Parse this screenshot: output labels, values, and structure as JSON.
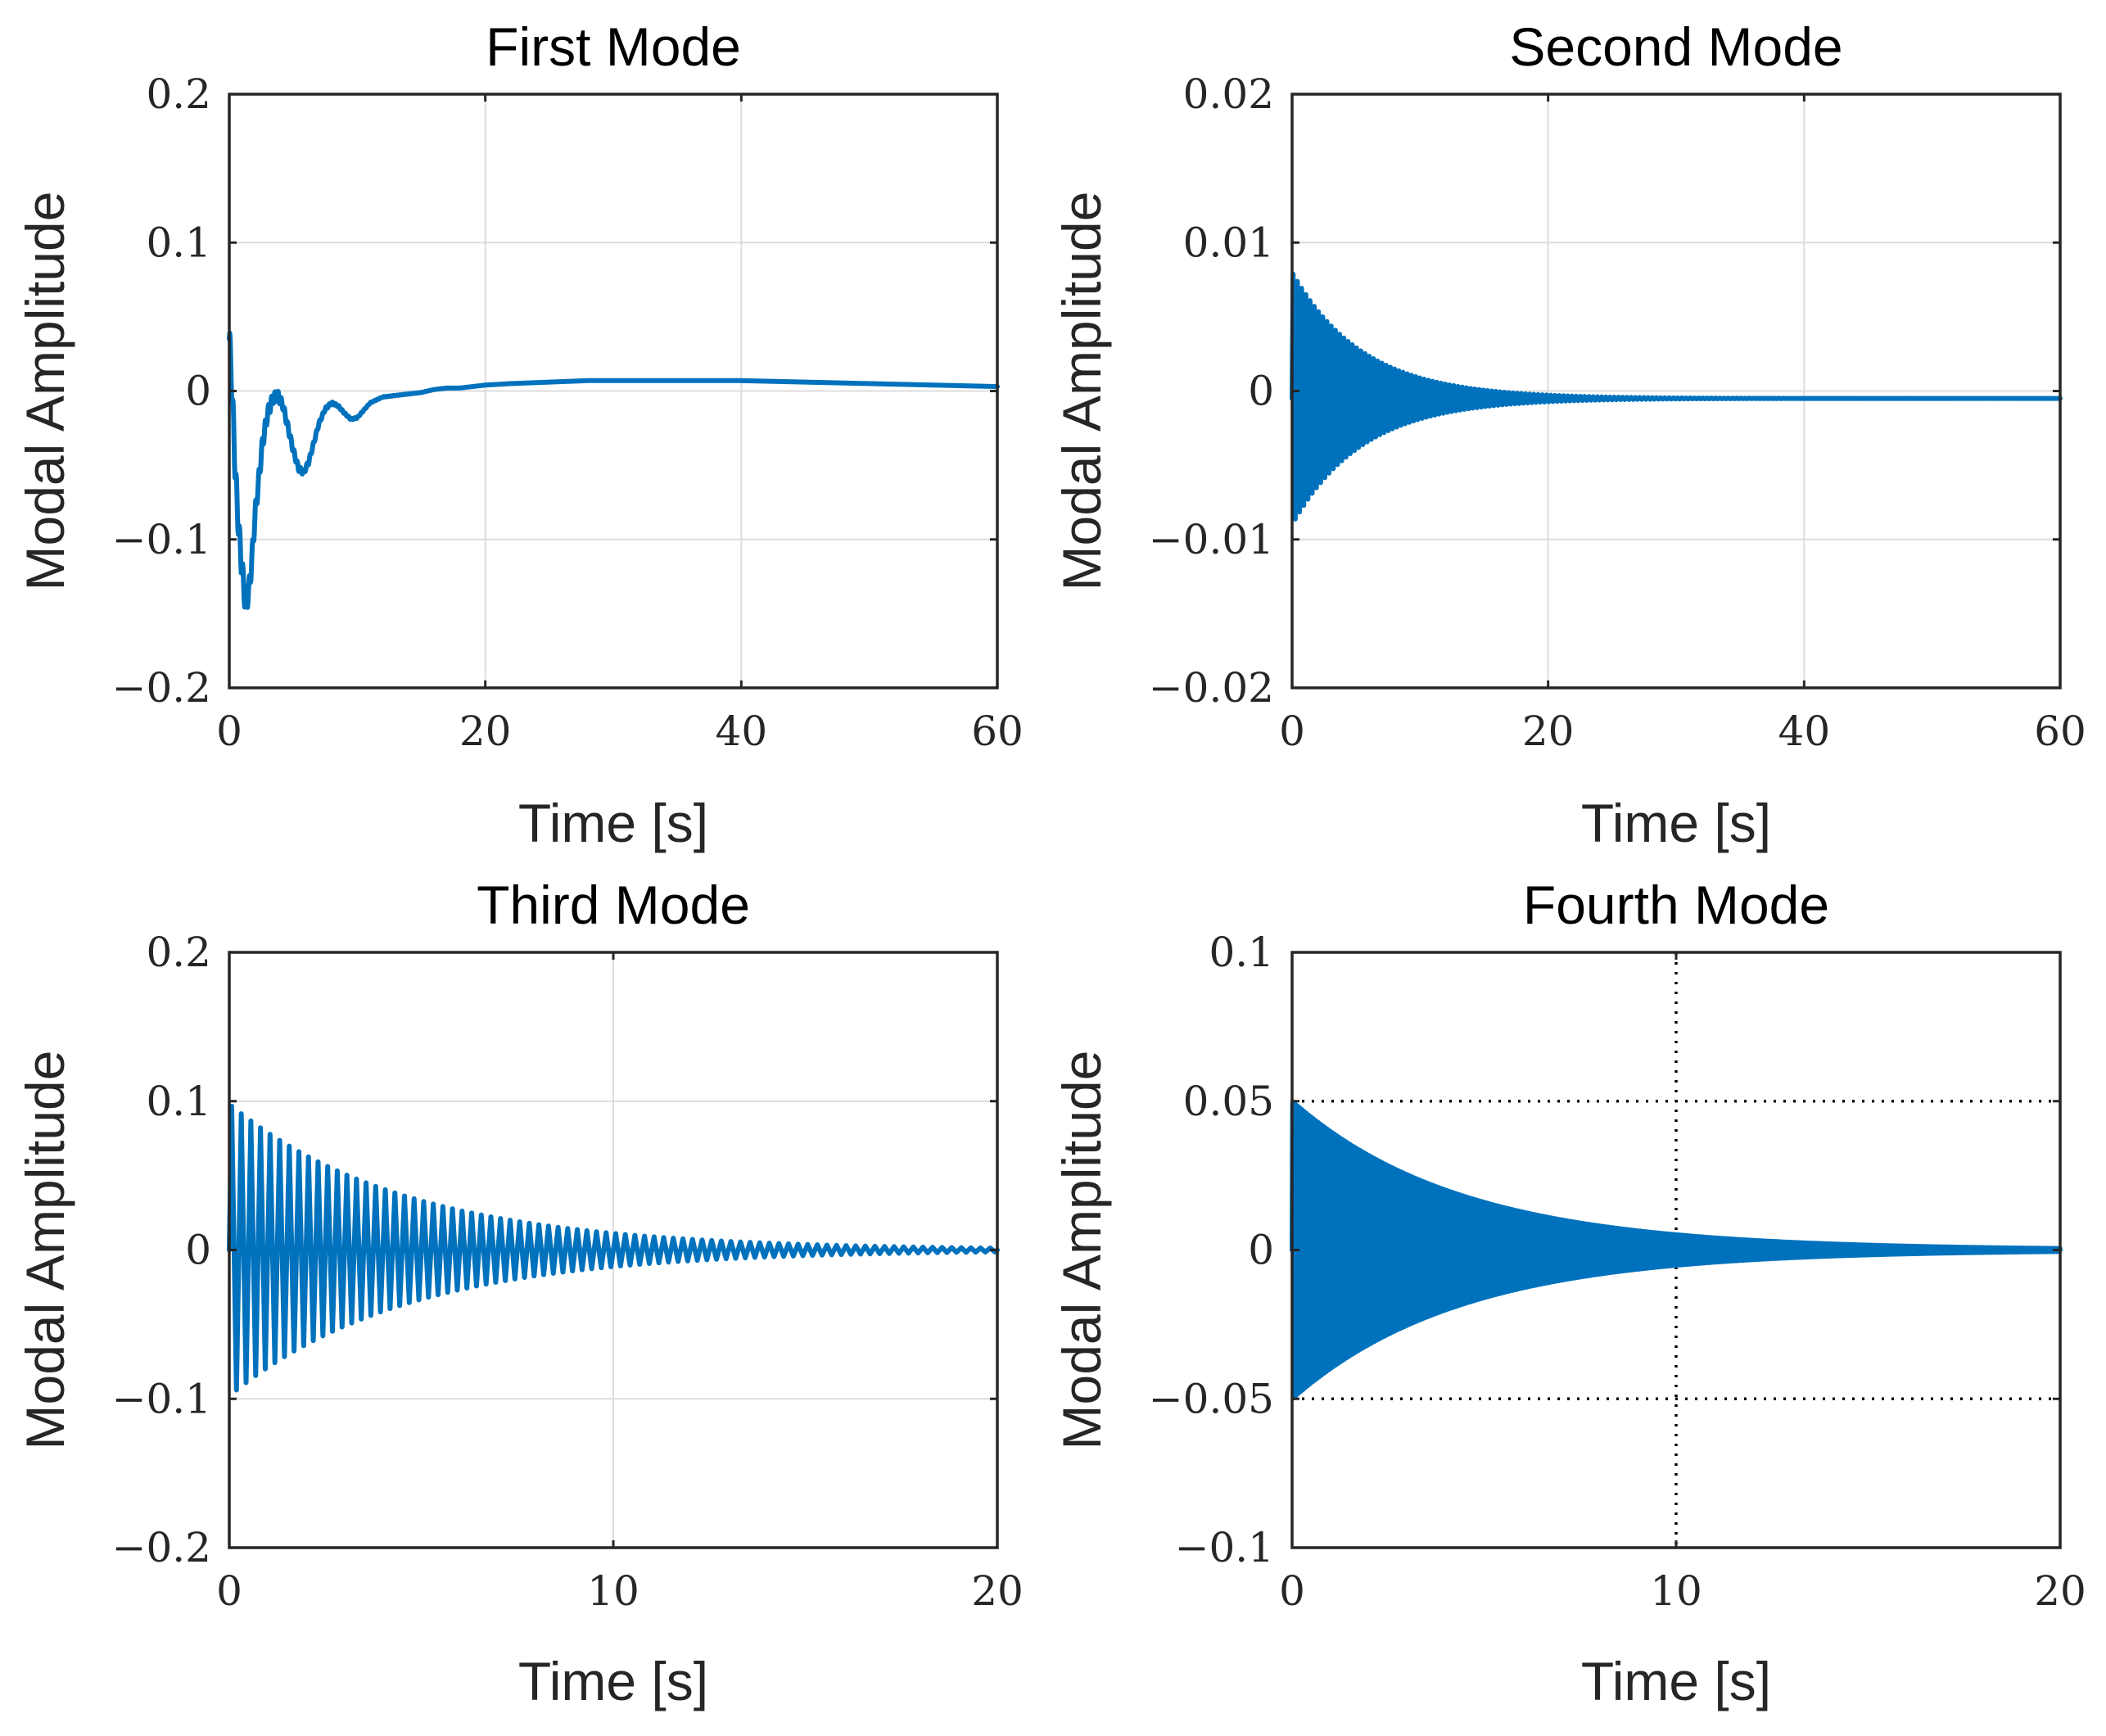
{
  "figure": {
    "series_color": "#0072BD"
  },
  "chart_data": [
    {
      "type": "line",
      "title": "First Mode",
      "xlabel": "Time [s]",
      "ylabel": "Modal Amplitude",
      "xlim": [
        0,
        60
      ],
      "ylim": [
        -0.2,
        0.2
      ],
      "xticks": [
        0,
        20,
        40,
        60
      ],
      "xtick_labels": [
        "0",
        "20",
        "40",
        "60"
      ],
      "yticks": [
        -0.2,
        -0.1,
        0,
        0.1,
        0.2
      ],
      "ytick_labels": [
        "−0.2",
        "−0.1",
        "0",
        "0.1",
        "0.2"
      ],
      "grid": "solid",
      "series": [
        {
          "name": "First Mode",
          "x": [
            0,
            0.2,
            0.4,
            0.6,
            0.8,
            1.0,
            1.2,
            1.4,
            1.6,
            1.8,
            2.0,
            2.3,
            2.6,
            3.0,
            3.4,
            3.8,
            4.2,
            4.6,
            5.0,
            5.4,
            5.8,
            6.2,
            6.6,
            7.0,
            7.5,
            8.0,
            8.5,
            9.0,
            9.5,
            10.0,
            10.5,
            11.0,
            12.0,
            13.0,
            14.0,
            15.0,
            16.0,
            17.0,
            18.0,
            19.0,
            20.0,
            22.0,
            25.0,
            28.0,
            32.0,
            36.0,
            40.0,
            45.0,
            50.0,
            55.0,
            60.0
          ],
          "y": [
            0.035,
            0.005,
            -0.04,
            -0.075,
            -0.1,
            -0.12,
            -0.138,
            -0.14,
            -0.13,
            -0.11,
            -0.085,
            -0.06,
            -0.035,
            -0.015,
            -0.005,
            -0.003,
            -0.01,
            -0.025,
            -0.04,
            -0.052,
            -0.055,
            -0.048,
            -0.035,
            -0.022,
            -0.012,
            -0.008,
            -0.01,
            -0.015,
            -0.019,
            -0.018,
            -0.013,
            -0.008,
            -0.004,
            -0.003,
            -0.002,
            -0.001,
            0.001,
            0.002,
            0.002,
            0.003,
            0.004,
            0.005,
            0.006,
            0.007,
            0.007,
            0.007,
            0.007,
            0.006,
            0.005,
            0.004,
            0.003
          ],
          "hf_amp": 0.012,
          "hf_period": 0.25,
          "hf_decay": 3
        }
      ]
    },
    {
      "type": "line",
      "title": "Second Mode",
      "xlabel": "Time [s]",
      "ylabel": "Modal Amplitude",
      "xlim": [
        0,
        60
      ],
      "ylim": [
        -0.02,
        0.02
      ],
      "xticks": [
        0,
        20,
        40,
        60
      ],
      "xtick_labels": [
        "0",
        "20",
        "40",
        "60"
      ],
      "yticks": [
        -0.02,
        -0.01,
        0,
        0.01,
        0.02
      ],
      "ytick_labels": [
        "−0.02",
        "−0.01",
        "0",
        "0.01",
        "0.02"
      ],
      "grid": "solid",
      "series": [
        {
          "name": "Second Mode",
          "osc_amp": 0.0085,
          "osc_period": 0.33,
          "osc_decay": 5.5,
          "offset": -0.0005,
          "duration": 60
        }
      ]
    },
    {
      "type": "line",
      "title": "Third Mode",
      "xlabel": "Time [s]",
      "ylabel": "Modal Amplitude",
      "xlim": [
        0,
        20
      ],
      "ylim": [
        -0.2,
        0.2
      ],
      "xticks": [
        0,
        10,
        20
      ],
      "xtick_labels": [
        "0",
        "10",
        "20"
      ],
      "yticks": [
        -0.2,
        -0.1,
        0,
        0.1,
        0.2
      ],
      "ytick_labels": [
        "−0.2",
        "−0.1",
        "0",
        "0.1",
        "0.2"
      ],
      "grid": "solid",
      "series": [
        {
          "name": "Third Mode",
          "osc_amp": 0.098,
          "osc_period": 0.25,
          "osc_decay": 4.6,
          "offset": 0,
          "duration": 20
        }
      ]
    },
    {
      "type": "line",
      "title": "Fourth Mode",
      "xlabel": "Time [s]",
      "ylabel": "Modal Amplitude",
      "xlim": [
        0,
        20
      ],
      "ylim": [
        -0.1,
        0.1
      ],
      "xticks": [
        0,
        10,
        20
      ],
      "xtick_labels": [
        "0",
        "10",
        "20"
      ],
      "yticks": [
        -0.1,
        -0.05,
        0,
        0.05,
        0.1
      ],
      "ytick_labels": [
        "−0.1",
        "−0.05",
        "0",
        "0.05",
        "0.1"
      ],
      "grid": "dotted",
      "series": [
        {
          "name": "Fourth Mode",
          "osc_amp": 0.05,
          "osc_period": 0.06,
          "osc_decay": 4.4,
          "offset": 0,
          "duration": 20
        }
      ]
    }
  ]
}
